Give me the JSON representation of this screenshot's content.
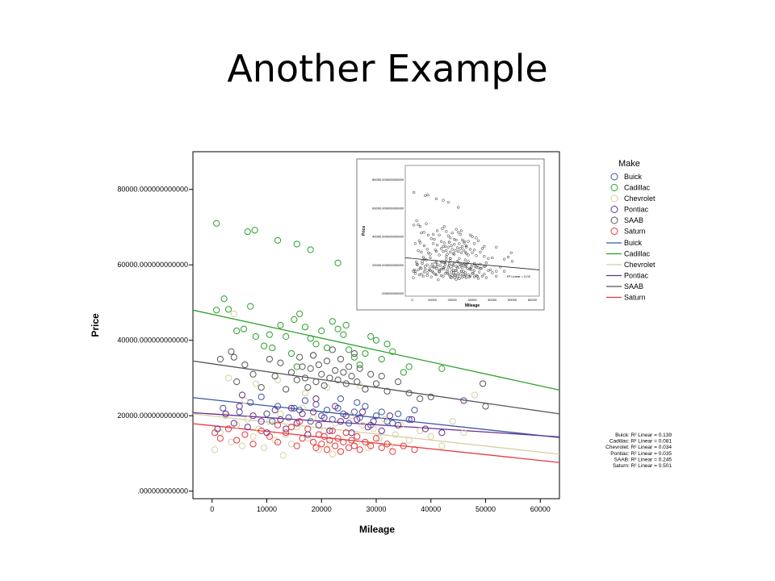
{
  "slide": {
    "title": "Another Example"
  },
  "chart_data": {
    "type": "scatter",
    "xlabel": "Mileage",
    "ylabel": "Price",
    "xlim": [
      -3500,
      63500
    ],
    "ylim": [
      -2000,
      90000
    ],
    "x_ticks": [
      0,
      10000,
      20000,
      30000,
      40000,
      50000,
      60000
    ],
    "x_tick_labels": [
      "0",
      "10000",
      "20000",
      "30000",
      "40000",
      "50000",
      "60000"
    ],
    "y_ticks": [
      0,
      20000,
      40000,
      60000,
      80000
    ],
    "y_tick_labels": [
      ".000000000000",
      "20000.000000000000",
      "40000.000000000000",
      "60000.000000000000",
      "80000.000000000000"
    ],
    "legend": {
      "title": "Make",
      "placement": "right"
    },
    "series": [
      {
        "name": "Buick",
        "color": "#3a55a4",
        "fit": {
          "x": [
            -3500,
            63500
          ],
          "y": [
            24800,
            14200
          ]
        },
        "r2": "Buick: R² Linear = 0.139",
        "points": [
          [
            2000,
            22000
          ],
          [
            5000,
            21000
          ],
          [
            7000,
            23500
          ],
          [
            10000,
            20500
          ],
          [
            12000,
            22500
          ],
          [
            14000,
            19500
          ],
          [
            16000,
            21500
          ],
          [
            18000,
            18500
          ],
          [
            19000,
            23000
          ],
          [
            20000,
            20000
          ],
          [
            21000,
            21500
          ],
          [
            22000,
            19000
          ],
          [
            23000,
            22000
          ],
          [
            24000,
            20500
          ],
          [
            25000,
            18000
          ],
          [
            26000,
            21000
          ],
          [
            27000,
            19500
          ],
          [
            28000,
            22500
          ],
          [
            30000,
            20000
          ],
          [
            32000,
            18500
          ],
          [
            34000,
            20500
          ],
          [
            36000,
            19000
          ],
          [
            37000,
            21500
          ],
          [
            17000,
            24000
          ],
          [
            15000,
            22000
          ],
          [
            29000,
            17500
          ],
          [
            31000,
            21000
          ],
          [
            33000,
            18000
          ],
          [
            23500,
            24500
          ],
          [
            26500,
            23500
          ],
          [
            11000,
            18500
          ],
          [
            9000,
            25000
          ]
        ]
      },
      {
        "name": "Cadillac",
        "color": "#2ca02c",
        "fit": {
          "x": [
            -3500,
            63500
          ],
          "y": [
            48000,
            26800
          ]
        },
        "r2": "Cadillac: R² Linear = 0.081",
        "points": [
          [
            800,
            71000
          ],
          [
            6500,
            68800
          ],
          [
            7800,
            69200
          ],
          [
            12000,
            66500
          ],
          [
            15500,
            65500
          ],
          [
            18000,
            64000
          ],
          [
            23000,
            60500
          ],
          [
            800,
            48000
          ],
          [
            2200,
            51000
          ],
          [
            3000,
            48200
          ],
          [
            4500,
            42500
          ],
          [
            5800,
            43000
          ],
          [
            7000,
            49000
          ],
          [
            8000,
            41000
          ],
          [
            9500,
            38500
          ],
          [
            10500,
            41500
          ],
          [
            11000,
            38000
          ],
          [
            12500,
            44000
          ],
          [
            13500,
            41000
          ],
          [
            14500,
            36500
          ],
          [
            15000,
            45500
          ],
          [
            16000,
            47000
          ],
          [
            17000,
            43500
          ],
          [
            18000,
            40500
          ],
          [
            19000,
            39000
          ],
          [
            20000,
            42500
          ],
          [
            21000,
            38000
          ],
          [
            22000,
            45000
          ],
          [
            23000,
            43000
          ],
          [
            24000,
            41500
          ],
          [
            25000,
            37500
          ],
          [
            26000,
            35500
          ],
          [
            27000,
            33500
          ],
          [
            28000,
            36500
          ],
          [
            29000,
            41000
          ],
          [
            30000,
            40000
          ],
          [
            31000,
            35000
          ],
          [
            32000,
            39000
          ],
          [
            33000,
            37000
          ],
          [
            35000,
            31500
          ],
          [
            36000,
            33000
          ],
          [
            42000,
            32500
          ],
          [
            24500,
            44000
          ],
          [
            18500,
            36000
          ],
          [
            15500,
            33000
          ]
        ]
      },
      {
        "name": "Chevrolet",
        "color": "#d8cfa4",
        "fit": {
          "x": [
            -3500,
            63500
          ],
          "y": [
            20500,
            9800
          ]
        },
        "r2": "Chevrolet: R² Linear = 0.034",
        "points": [
          [
            500,
            11000
          ],
          [
            1500,
            15500
          ],
          [
            2500,
            20000
          ],
          [
            3500,
            13000
          ],
          [
            4500,
            17500
          ],
          [
            5500,
            12000
          ],
          [
            6500,
            19000
          ],
          [
            7500,
            14500
          ],
          [
            8500,
            16500
          ],
          [
            9500,
            11500
          ],
          [
            10500,
            18500
          ],
          [
            11500,
            13500
          ],
          [
            12500,
            20500
          ],
          [
            13500,
            15000
          ],
          [
            14500,
            12500
          ],
          [
            15500,
            17000
          ],
          [
            16500,
            22000
          ],
          [
            17500,
            14000
          ],
          [
            18500,
            19500
          ],
          [
            19500,
            11000
          ],
          [
            20500,
            16000
          ],
          [
            21500,
            12500
          ],
          [
            22500,
            18000
          ],
          [
            23500,
            10500
          ],
          [
            24500,
            15500
          ],
          [
            25500,
            20000
          ],
          [
            26500,
            13000
          ],
          [
            27500,
            17500
          ],
          [
            28500,
            11500
          ],
          [
            29500,
            16500
          ],
          [
            30500,
            14000
          ],
          [
            31500,
            19000
          ],
          [
            32500,
            12000
          ],
          [
            33500,
            15000
          ],
          [
            34500,
            17500
          ],
          [
            36000,
            13500
          ],
          [
            38000,
            16000
          ],
          [
            40000,
            14500
          ],
          [
            42000,
            12000
          ],
          [
            44000,
            18500
          ],
          [
            46000,
            15500
          ],
          [
            48000,
            25500
          ],
          [
            3000,
            30000
          ],
          [
            8000,
            28500
          ],
          [
            12000,
            29500
          ],
          [
            17000,
            26000
          ],
          [
            21000,
            27500
          ],
          [
            27000,
            28000
          ],
          [
            13000,
            9500
          ],
          [
            22000,
            9800
          ],
          [
            4000,
            47000
          ],
          [
            6000,
            24000
          ],
          [
            19000,
            24500
          ]
        ]
      },
      {
        "name": "Pontiac",
        "color": "#6a2c91",
        "fit": {
          "x": [
            -3500,
            63500
          ],
          "y": [
            20800,
            14400
          ]
        },
        "r2": "Pontiac: R² Linear = 0.035",
        "points": [
          [
            1000,
            16500
          ],
          [
            2500,
            20500
          ],
          [
            4000,
            18000
          ],
          [
            5000,
            22500
          ],
          [
            6500,
            17000
          ],
          [
            7500,
            20000
          ],
          [
            9000,
            18500
          ],
          [
            10000,
            15500
          ],
          [
            11500,
            21500
          ],
          [
            12500,
            19000
          ],
          [
            13500,
            16500
          ],
          [
            14500,
            22000
          ],
          [
            15500,
            18000
          ],
          [
            16500,
            20500
          ],
          [
            17500,
            15000
          ],
          [
            18500,
            21000
          ],
          [
            19500,
            17500
          ],
          [
            20500,
            19500
          ],
          [
            21500,
            16000
          ],
          [
            22500,
            22500
          ],
          [
            23500,
            18500
          ],
          [
            24500,
            20000
          ],
          [
            25500,
            15500
          ],
          [
            26500,
            19000
          ],
          [
            27500,
            21000
          ],
          [
            28500,
            17000
          ],
          [
            29500,
            18500
          ],
          [
            31000,
            16000
          ],
          [
            32500,
            20000
          ],
          [
            34000,
            17500
          ],
          [
            36500,
            19000
          ],
          [
            39000,
            16500
          ],
          [
            42000,
            15500
          ],
          [
            46000,
            24000
          ],
          [
            5500,
            25500
          ],
          [
            19000,
            24500
          ]
        ]
      },
      {
        "name": "SAAB",
        "color": "#555555",
        "fit": {
          "x": [
            -3500,
            63500
          ],
          "y": [
            34500,
            20500
          ]
        },
        "r2": "SAAB: R² Linear = 0.245",
        "points": [
          [
            1500,
            35000
          ],
          [
            3500,
            37000
          ],
          [
            4500,
            29000
          ],
          [
            6000,
            33500
          ],
          [
            7500,
            31000
          ],
          [
            9000,
            27500
          ],
          [
            10500,
            35000
          ],
          [
            11500,
            30500
          ],
          [
            12500,
            34000
          ],
          [
            13500,
            27000
          ],
          [
            14500,
            31500
          ],
          [
            15500,
            29500
          ],
          [
            16000,
            35500
          ],
          [
            16500,
            33000
          ],
          [
            17000,
            30000
          ],
          [
            17500,
            27500
          ],
          [
            18000,
            32500
          ],
          [
            18500,
            36000
          ],
          [
            19000,
            29000
          ],
          [
            19500,
            33500
          ],
          [
            20000,
            31000
          ],
          [
            20500,
            28000
          ],
          [
            21000,
            34500
          ],
          [
            21500,
            30000
          ],
          [
            22000,
            37500
          ],
          [
            22500,
            32000
          ],
          [
            23000,
            29500
          ],
          [
            23500,
            35000
          ],
          [
            24000,
            31500
          ],
          [
            24500,
            28500
          ],
          [
            25000,
            33000
          ],
          [
            25500,
            30500
          ],
          [
            26000,
            36500
          ],
          [
            26500,
            29000
          ],
          [
            27000,
            32500
          ],
          [
            28000,
            27000
          ],
          [
            29000,
            31000
          ],
          [
            30000,
            28500
          ],
          [
            31000,
            30500
          ],
          [
            32000,
            26500
          ],
          [
            34000,
            29000
          ],
          [
            36000,
            26000
          ],
          [
            38000,
            24500
          ],
          [
            40000,
            25000
          ],
          [
            49500,
            28500
          ],
          [
            50000,
            22500
          ],
          [
            4000,
            35500
          ]
        ]
      },
      {
        "name": "Saturn",
        "color": "#e8383d",
        "fit": {
          "x": [
            -3500,
            63500
          ],
          "y": [
            17900,
            7600
          ]
        },
        "r2": "Saturn: R² Linear = 0.501",
        "points": [
          [
            500,
            15500
          ],
          [
            1500,
            14000
          ],
          [
            3000,
            16500
          ],
          [
            4500,
            13500
          ],
          [
            6000,
            15000
          ],
          [
            7500,
            12500
          ],
          [
            9000,
            16000
          ],
          [
            10500,
            14500
          ],
          [
            12000,
            13000
          ],
          [
            13500,
            15500
          ],
          [
            14500,
            17000
          ],
          [
            15500,
            12000
          ],
          [
            16500,
            14000
          ],
          [
            17500,
            16500
          ],
          [
            18500,
            13000
          ],
          [
            19000,
            11500
          ],
          [
            19500,
            15000
          ],
          [
            20000,
            12500
          ],
          [
            20500,
            14500
          ],
          [
            21000,
            11000
          ],
          [
            21500,
            13500
          ],
          [
            22000,
            16000
          ],
          [
            22500,
            12000
          ],
          [
            23000,
            14000
          ],
          [
            23500,
            10500
          ],
          [
            24000,
            13000
          ],
          [
            24500,
            15500
          ],
          [
            25000,
            11500
          ],
          [
            25500,
            13500
          ],
          [
            26000,
            12000
          ],
          [
            26500,
            14500
          ],
          [
            27000,
            11000
          ],
          [
            28000,
            13000
          ],
          [
            29000,
            12000
          ],
          [
            30000,
            14000
          ],
          [
            31000,
            11500
          ],
          [
            32000,
            12500
          ],
          [
            33000,
            10500
          ],
          [
            35000,
            12000
          ],
          [
            37000,
            11000
          ],
          [
            12000,
            17500
          ],
          [
            16000,
            18500
          ]
        ]
      }
    ],
    "inset": {
      "xlabel": "Mileage",
      "ylabel": "Price",
      "x_tick_labels": [
        "0",
        "10000",
        "20000",
        "30000",
        "40000",
        "50000",
        "60000"
      ],
      "y_tick_labels": [
        ".000000000000",
        "20000.000000000000",
        "40000.000000000000",
        "60000.000000000000",
        "80000.000000000000"
      ],
      "r2": "R² Linear = 0.02",
      "fit": {
        "x": [
          -3500,
          63500
        ],
        "y": [
          25000,
          16500
        ]
      }
    }
  }
}
